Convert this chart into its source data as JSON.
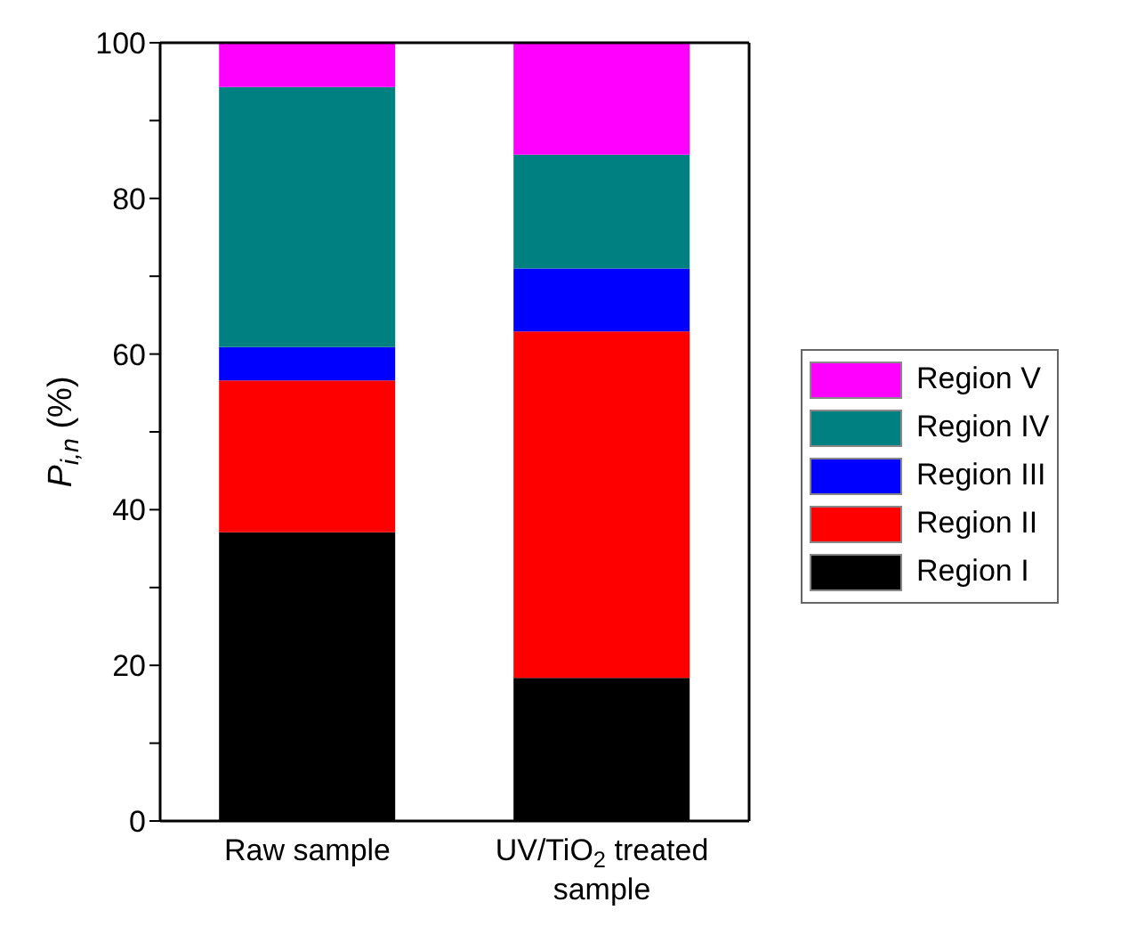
{
  "chart_data": {
    "type": "bar",
    "stacked": true,
    "ylabel": "P$_{i,n}$ (%)",
    "categories": [
      "Raw sample",
      "UV/TiO$_{2}$ treated sample"
    ],
    "series": [
      {
        "name": "Region I",
        "color": "#000000",
        "values": [
          37.1,
          18.4
        ]
      },
      {
        "name": "Region II",
        "color": "#ff0000",
        "values": [
          19.5,
          44.5
        ]
      },
      {
        "name": "Region III",
        "color": "#0000ff",
        "values": [
          4.3,
          8.1
        ]
      },
      {
        "name": "Region IV",
        "color": "#008080",
        "values": [
          33.4,
          14.6
        ]
      },
      {
        "name": "Region V",
        "color": "#ff00ff",
        "values": [
          5.7,
          14.4
        ]
      }
    ],
    "ylim": [
      0,
      100
    ],
    "yticks": [
      0,
      {
        "value": 10,
        "label": null
      },
      20,
      {
        "value": 30,
        "label": null
      },
      40,
      {
        "value": 50,
        "label": null
      },
      60,
      {
        "value": 70,
        "label": null
      },
      80,
      {
        "value": 90,
        "label": null
      },
      100
    ],
    "legend": "right",
    "grid": false
  }
}
